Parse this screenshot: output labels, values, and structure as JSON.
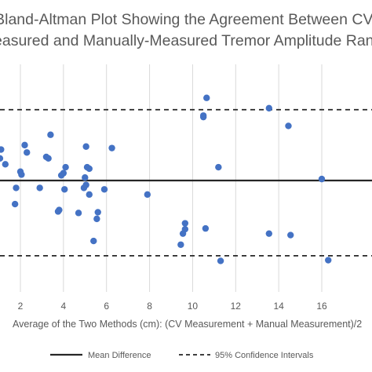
{
  "chart_data": {
    "type": "scatter",
    "title_lines": [
      "Bland-Altman Plot Showing the Agreement Between CV-",
      "Measured and Manually-Measured Tremor Amplitude Range"
    ],
    "xlabel": "Average of the Two Methods (cm): (CV Measurement + Manual Measurement)/2",
    "ylabel": "",
    "x_ticks": [
      "2",
      "4",
      "6",
      "8",
      "10",
      "12",
      "14",
      "16"
    ],
    "xlim": [
      1,
      17.2
    ],
    "ylim": [
      -7,
      7
    ],
    "grid": {
      "vertical": true,
      "horizontal": false
    },
    "mean_difference": 0,
    "confidence_intervals": [
      4.8,
      -5.1
    ],
    "series": [
      {
        "color": "#4472C4",
        "x": [
          1.1,
          1.05,
          1.3,
          2.2,
          2.3,
          3.4,
          3.2,
          3.3,
          2.0,
          2.05,
          1.8,
          2.9,
          4.1,
          4.0,
          4.05,
          3.9,
          5.05,
          5.1,
          5.2,
          5.0,
          5.05,
          5.2,
          4.95,
          5.9,
          3.8,
          3.75,
          4.7,
          5.6,
          5.55,
          5.4,
          6.25,
          7.9,
          1.75,
          10.65,
          10.5,
          10.5,
          11.2,
          13.55,
          14.45,
          16.0,
          9.65,
          9.65,
          10.6,
          9.55,
          9.45,
          11.3,
          13.55,
          14.55,
          16.3
        ],
        "y": [
          2.1,
          1.5,
          1.1,
          2.4,
          1.9,
          3.1,
          1.6,
          1.5,
          0.6,
          0.4,
          -0.5,
          -0.5,
          0.9,
          0.5,
          -0.6,
          0.35,
          2.3,
          0.9,
          0.8,
          0.2,
          -0.3,
          -0.95,
          -0.5,
          -0.6,
          -2.0,
          -2.1,
          -2.2,
          -2.15,
          -2.6,
          -4.1,
          2.2,
          -0.95,
          -1.6,
          5.6,
          4.4,
          4.3,
          0.9,
          4.9,
          3.7,
          0.1,
          -2.9,
          -3.3,
          -3.25,
          -3.6,
          -4.35,
          -5.45,
          -3.6,
          -3.7,
          -5.4
        ]
      }
    ],
    "legend": {
      "placement": "bottom",
      "entries": [
        {
          "label": "Mean Difference",
          "style": "solid",
          "color": "#262626"
        },
        {
          "label": "95% Confidence Intervals",
          "style": "dashed",
          "color": "#262626"
        }
      ]
    }
  }
}
